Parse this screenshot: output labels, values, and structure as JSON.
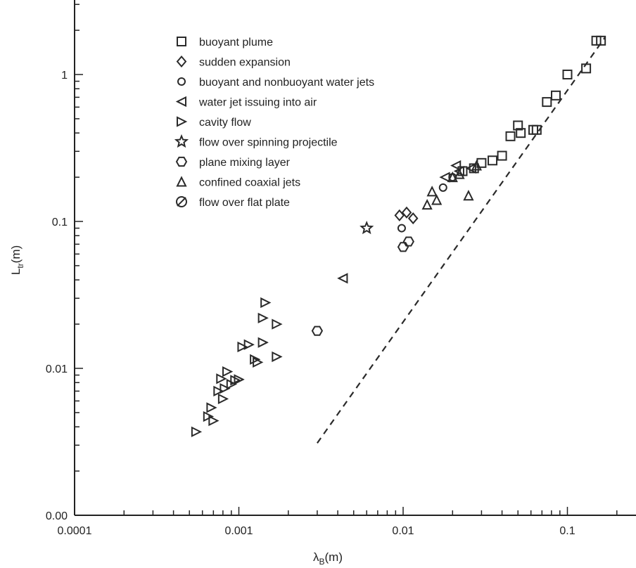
{
  "chart_data": {
    "type": "scatter",
    "xscale": "log",
    "yscale": "log",
    "xlim": [
      0.0001,
      0.3
    ],
    "ylim": [
      0.001,
      3
    ],
    "xlabel": {
      "main": "λ",
      "sub": "B",
      "unit": "(m)"
    },
    "ylabel": {
      "main": "L",
      "sub": "tr",
      "unit": "(m)"
    },
    "x_ticks": [
      {
        "value": 0.0001,
        "label": "0.0001"
      },
      {
        "value": 0.001,
        "label": "0.001"
      },
      {
        "value": 0.01,
        "label": "0.01"
      },
      {
        "value": 0.1,
        "label": "0.1"
      }
    ],
    "y_ticks": [
      {
        "value": 0.001,
        "label": "0.00"
      },
      {
        "value": 0.01,
        "label": "0.01"
      },
      {
        "value": 0.1,
        "label": "0.1"
      },
      {
        "value": 1,
        "label": "1"
      }
    ],
    "fit_line": {
      "style": "dashed",
      "x": [
        0.003,
        0.17
      ],
      "y": [
        0.0031,
        1.8
      ]
    },
    "legend_position": "top-left",
    "series": [
      {
        "name": "buoyant plume",
        "marker": "square",
        "points": [
          [
            0.023,
            0.22
          ],
          [
            0.027,
            0.23
          ],
          [
            0.03,
            0.25
          ],
          [
            0.035,
            0.26
          ],
          [
            0.04,
            0.28
          ],
          [
            0.045,
            0.38
          ],
          [
            0.05,
            0.45
          ],
          [
            0.052,
            0.4
          ],
          [
            0.062,
            0.42
          ],
          [
            0.065,
            0.42
          ],
          [
            0.075,
            0.65
          ],
          [
            0.085,
            0.72
          ],
          [
            0.1,
            1.0
          ],
          [
            0.13,
            1.1
          ],
          [
            0.15,
            1.7
          ],
          [
            0.16,
            1.7
          ]
        ]
      },
      {
        "name": "sudden expansion",
        "marker": "diamond",
        "points": [
          [
            0.0095,
            0.11
          ],
          [
            0.0105,
            0.115
          ],
          [
            0.0115,
            0.105
          ]
        ]
      },
      {
        "name": "buoyant and nonbuoyant water jets",
        "marker": "circle-small",
        "points": [
          [
            0.0098,
            0.09
          ],
          [
            0.0175,
            0.17
          ],
          [
            0.02,
            0.2
          ]
        ]
      },
      {
        "name": "water jet issuing into air",
        "marker": "triangle-left",
        "points": [
          [
            0.0043,
            0.041
          ],
          [
            0.018,
            0.2
          ],
          [
            0.022,
            0.22
          ],
          [
            0.026,
            0.23
          ],
          [
            0.021,
            0.24
          ]
        ]
      },
      {
        "name": "cavity flow",
        "marker": "triangle-right",
        "points": [
          [
            0.00055,
            0.0037
          ],
          [
            0.00065,
            0.0047
          ],
          [
            0.00068,
            0.0054
          ],
          [
            0.0007,
            0.0044
          ],
          [
            0.00075,
            0.007
          ],
          [
            0.00078,
            0.0085
          ],
          [
            0.0008,
            0.0062
          ],
          [
            0.00082,
            0.0073
          ],
          [
            0.00085,
            0.0095
          ],
          [
            0.0009,
            0.0078
          ],
          [
            0.00095,
            0.0083
          ],
          [
            0.001,
            0.0084
          ],
          [
            0.00105,
            0.014
          ],
          [
            0.00115,
            0.0145
          ],
          [
            0.00125,
            0.0115
          ],
          [
            0.0013,
            0.011
          ],
          [
            0.0014,
            0.015
          ],
          [
            0.0014,
            0.022
          ],
          [
            0.00145,
            0.028
          ],
          [
            0.0017,
            0.02
          ],
          [
            0.0017,
            0.012
          ]
        ]
      },
      {
        "name": "flow over spinning projectile",
        "marker": "star",
        "points": [
          [
            0.006,
            0.09
          ]
        ]
      },
      {
        "name": "plane mixing layer",
        "marker": "hexagon",
        "points": [
          [
            0.003,
            0.018
          ],
          [
            0.01,
            0.067
          ],
          [
            0.0108,
            0.073
          ]
        ]
      },
      {
        "name": "confined coaxial jets",
        "marker": "triangle-up",
        "points": [
          [
            0.014,
            0.13
          ],
          [
            0.015,
            0.16
          ],
          [
            0.016,
            0.14
          ],
          [
            0.025,
            0.15
          ],
          [
            0.028,
            0.24
          ],
          [
            0.02,
            0.2
          ],
          [
            0.022,
            0.21
          ]
        ]
      },
      {
        "name": "flow over flat plate",
        "marker": "circle-slash",
        "points": []
      }
    ]
  }
}
